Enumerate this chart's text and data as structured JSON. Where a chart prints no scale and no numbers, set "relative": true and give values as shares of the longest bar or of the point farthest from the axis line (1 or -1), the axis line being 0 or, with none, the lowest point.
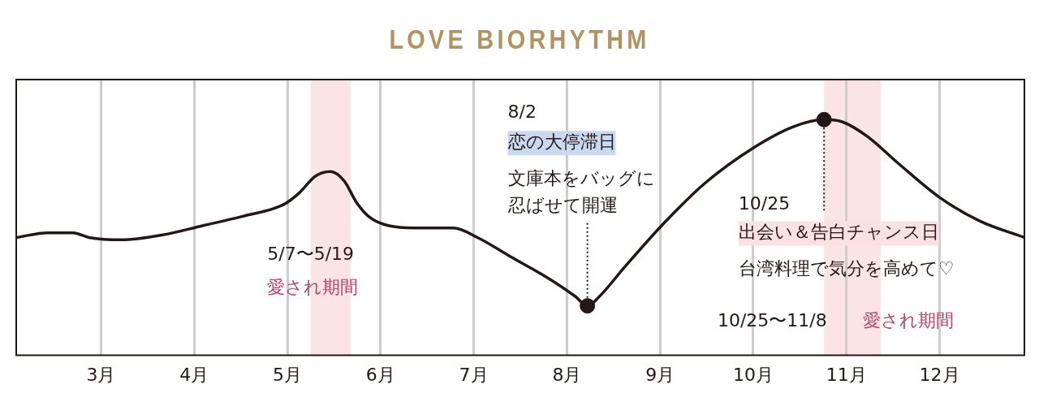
{
  "chart_data": {
    "type": "line",
    "title": "LOVE BIORHYTHM",
    "relative": true,
    "grid": "x",
    "legend": false,
    "xlim": [
      2.09,
      12.91
    ],
    "xticks": [
      {
        "value": 3,
        "label": "3月"
      },
      {
        "value": 4,
        "label": "4月"
      },
      {
        "value": 5,
        "label": "5月"
      },
      {
        "value": 6,
        "label": "6月"
      },
      {
        "value": 7,
        "label": "7月"
      },
      {
        "value": 8,
        "label": "8月"
      },
      {
        "value": 9,
        "label": "9月"
      },
      {
        "value": 10,
        "label": "10月"
      },
      {
        "value": 11,
        "label": "11月"
      },
      {
        "value": 12,
        "label": "12月"
      }
    ],
    "series": [
      {
        "color": "#231815",
        "x": [
          2.09,
          2.43,
          2.7,
          2.87,
          3.22,
          3.65,
          4.09,
          4.52,
          4.96,
          5.13,
          5.3,
          5.46,
          5.61,
          5.74,
          5.87,
          6.09,
          6.43,
          6.78,
          7.04,
          7.39,
          7.83,
          8.09,
          8.22,
          8.35,
          8.61,
          9.04,
          9.48,
          10,
          10.43,
          10.76,
          10.96,
          11.22,
          11.57,
          12,
          12.43,
          12.91
        ],
        "values": [
          0.5,
          0.52,
          0.52,
          0.5,
          0.49,
          0.51,
          0.55,
          0.59,
          0.64,
          0.69,
          0.76,
          0.78,
          0.74,
          0.65,
          0.59,
          0.55,
          0.54,
          0.54,
          0.5,
          0.42,
          0.32,
          0.25,
          0.21,
          0.25,
          0.37,
          0.56,
          0.73,
          0.88,
          0.97,
          1,
          0.99,
          0.93,
          0.81,
          0.67,
          0.57,
          0.5
        ]
      },
      {
        "type": "scatter",
        "color": "#231815",
        "marker": "circle",
        "x": [
          8.22,
          10.76
        ],
        "values": [
          0.21,
          1
        ]
      }
    ],
    "bands": [
      {
        "axis": "x",
        "from": 5.25,
        "to": 5.68,
        "color": "#fbe4e6"
      },
      {
        "axis": "x",
        "from": 10.76,
        "to": 11.37,
        "color": "#fbe4e6"
      }
    ],
    "annotations": [
      "8/2",
      "恋の大停滞日",
      "文庫本をバッグに",
      "忍ばせて開運",
      "10/25",
      "出会い＆告白チャンス日",
      "台湾料理で気分を高めて♡",
      "5/7〜5/19",
      "愛され期間",
      "10/25〜11/8",
      "愛され期間"
    ]
  }
}
